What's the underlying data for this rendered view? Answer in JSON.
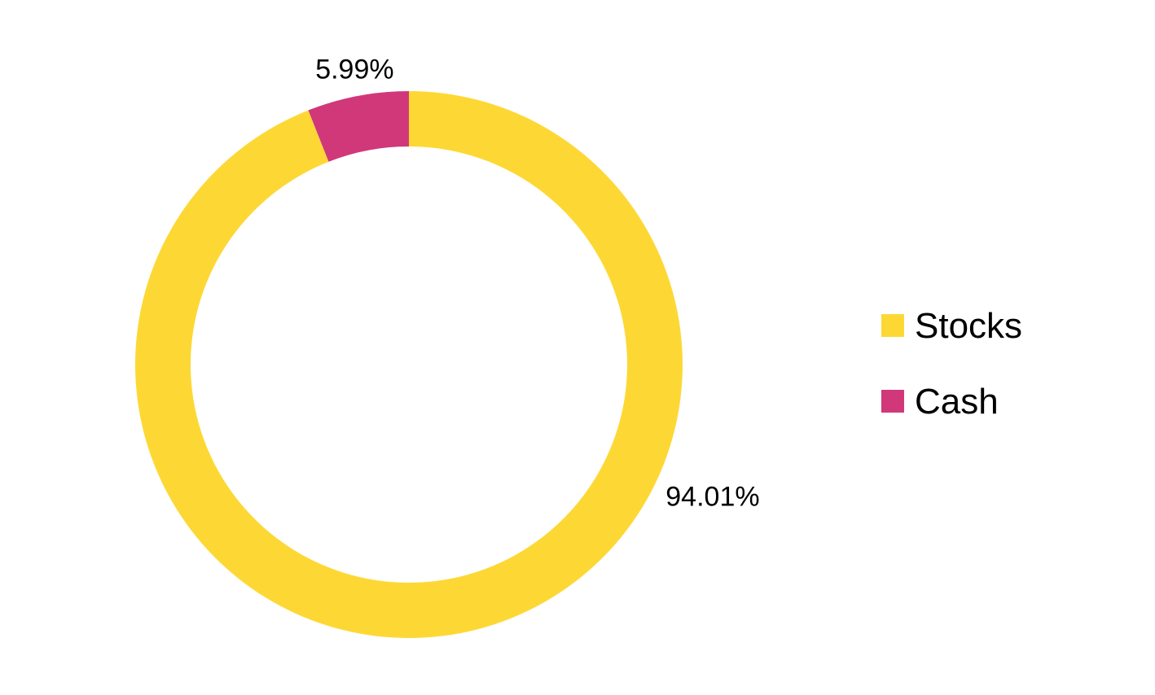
{
  "chart_data": {
    "type": "pie",
    "variant": "donut",
    "title": "",
    "categories": [
      "Stocks",
      "Cash"
    ],
    "values": [
      94.01,
      5.99
    ],
    "data_labels": [
      "94.01%",
      "5.99%"
    ],
    "unit": "%",
    "colors": [
      "#FDD835",
      "#D0387A"
    ],
    "legend": {
      "placement": "right",
      "entries": [
        "Stocks",
        "Cash"
      ]
    }
  }
}
